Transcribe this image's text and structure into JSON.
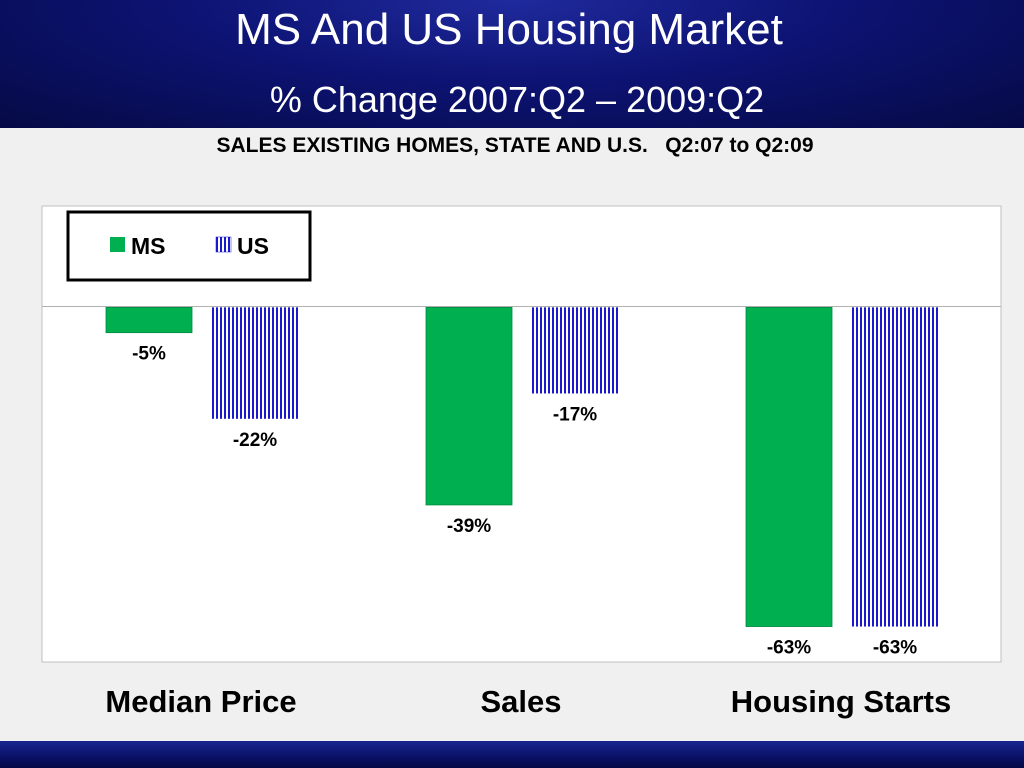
{
  "header": {
    "title": "MS And US Housing Market",
    "subtitle": "% Change 2007:Q2 – 2009:Q2"
  },
  "colors": {
    "ms": "#00b050",
    "us_stripe": "#1a1acc",
    "header_bg": "#0d1373"
  },
  "chart_data": {
    "type": "bar",
    "title": "SALES EXISTING HOMES, STATE AND U.S.   Q2:07 to Q2:09",
    "categories": [
      "Median Price",
      "Sales",
      "Housing Starts"
    ],
    "series": [
      {
        "name": "MS",
        "values": [
          -5,
          -39,
          -63
        ],
        "labels": [
          "-5%",
          "-39%",
          "-63%"
        ]
      },
      {
        "name": "US",
        "values": [
          -22,
          -17,
          -63
        ],
        "labels": [
          "-22%",
          "-17%",
          "-63%"
        ]
      }
    ],
    "ylim": [
      -70,
      20
    ],
    "grid": false,
    "legend": "top-left"
  }
}
